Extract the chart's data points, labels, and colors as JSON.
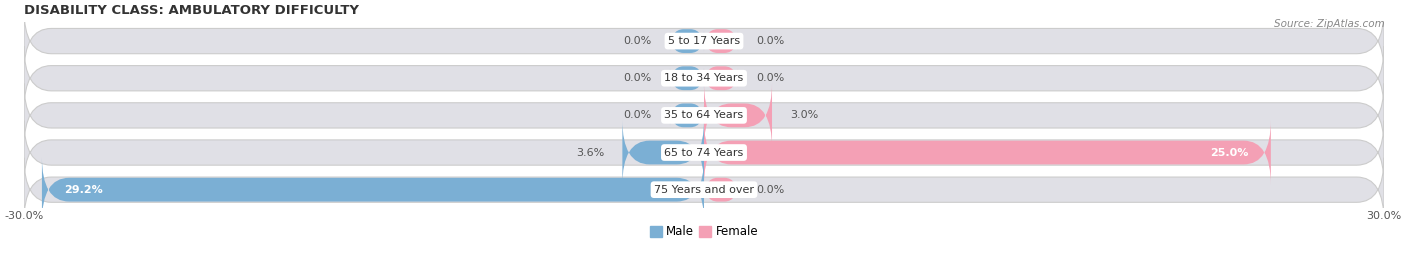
{
  "title": "DISABILITY CLASS: AMBULATORY DIFFICULTY",
  "source": "Source: ZipAtlas.com",
  "categories": [
    "5 to 17 Years",
    "18 to 34 Years",
    "35 to 64 Years",
    "65 to 74 Years",
    "75 Years and over"
  ],
  "male_values": [
    0.0,
    0.0,
    0.0,
    3.6,
    29.2
  ],
  "female_values": [
    0.0,
    0.0,
    3.0,
    25.0,
    0.0
  ],
  "xlim": 30.0,
  "male_color": "#7bafd4",
  "female_color": "#f4a0b5",
  "bar_bg_color": "#e0e0e6",
  "bar_bg_border": "#cccccc",
  "title_fontsize": 9.5,
  "tick_fontsize": 8,
  "bar_height": 0.68,
  "label_fontsize": 8,
  "min_stub": 1.5
}
